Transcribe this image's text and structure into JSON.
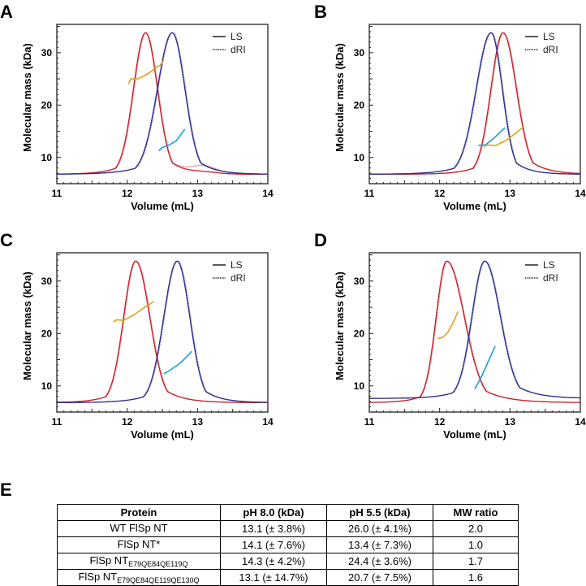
{
  "chart_data": [
    {
      "panel": "A",
      "type": "line",
      "xlabel": "Volume (mL)",
      "ylabel": "Molecular mass (kDa)",
      "xlim": [
        11,
        14
      ],
      "ylim": [
        5,
        35.4
      ],
      "xticks": [
        "11",
        "12",
        "13",
        "14"
      ],
      "yticks": [
        "10",
        "20",
        "30"
      ],
      "legend": {
        "position": "top-right",
        "entries": [
          "LS",
          "dRI"
        ]
      },
      "series": [
        {
          "color": "#c8202a",
          "kind": "chromatogram",
          "peak_volume": 12.26,
          "peak_height": 33.8,
          "baseline": 6.8,
          "width_left": 0.17,
          "width_right": 0.17,
          "shoulder": {
            "volume": 13.1,
            "height": 1.4
          }
        },
        {
          "color": "#2e2e8c",
          "kind": "chromatogram",
          "peak_volume": 12.64,
          "peak_height": 33.8,
          "baseline": 6.8,
          "width_left": 0.21,
          "width_right": 0.18
        },
        {
          "color": "#e3a21a",
          "kind": "mass",
          "points": [
            [
              12.02,
              24.0
            ],
            [
              12.05,
              25.0
            ],
            [
              12.15,
              25.0
            ],
            [
              12.3,
              26.0
            ],
            [
              12.42,
              27.3
            ],
            [
              12.47,
              27.6
            ],
            [
              12.52,
              28.6
            ]
          ]
        },
        {
          "color": "#1b9ee0",
          "kind": "mass",
          "points": [
            [
              12.45,
              11.3
            ],
            [
              12.5,
              11.9
            ],
            [
              12.6,
              12.4
            ],
            [
              12.7,
              13.2
            ],
            [
              12.82,
              15.4
            ]
          ]
        }
      ]
    },
    {
      "panel": "B",
      "type": "line",
      "xlabel": "Volume (mL)",
      "ylabel": "Molecular mass (kDa)",
      "xlim": [
        11,
        14
      ],
      "ylim": [
        5,
        35.4
      ],
      "xticks": [
        "11",
        "12",
        "13",
        "14"
      ],
      "yticks": [
        "10",
        "20",
        "30"
      ],
      "legend": {
        "position": "top-right",
        "entries": [
          "LS",
          "dRI"
        ]
      },
      "series": [
        {
          "color": "#c8202a",
          "kind": "chromatogram",
          "peak_volume": 12.9,
          "peak_height": 33.8,
          "baseline": 6.8,
          "width_left": 0.17,
          "width_right": 0.19
        },
        {
          "color": "#2e2e8c",
          "kind": "chromatogram",
          "peak_volume": 12.73,
          "peak_height": 33.8,
          "baseline": 6.8,
          "width_left": 0.21,
          "width_right": 0.16
        },
        {
          "color": "#e3a21a",
          "kind": "mass",
          "points": [
            [
              12.63,
              11.9
            ],
            [
              12.65,
              12.4
            ],
            [
              12.8,
              12.3
            ],
            [
              12.95,
              13.3
            ],
            [
              13.1,
              14.8
            ],
            [
              13.2,
              16.0
            ]
          ]
        },
        {
          "color": "#1b9ee0",
          "kind": "mass",
          "points": [
            [
              12.55,
              12.3
            ],
            [
              12.65,
              12.4
            ],
            [
              12.75,
              13.4
            ],
            [
              12.85,
              14.7
            ],
            [
              12.93,
              15.7
            ]
          ]
        }
      ]
    },
    {
      "panel": "C",
      "type": "line",
      "xlabel": "Volume (mL)",
      "ylabel": "Molecular mass (kDa)",
      "xlim": [
        11,
        14
      ],
      "ylim": [
        5,
        35.4
      ],
      "xticks": [
        "11",
        "12",
        "13",
        "14"
      ],
      "yticks": [
        "10",
        "20",
        "30"
      ],
      "legend": {
        "position": "top-right",
        "entries": [
          "LS",
          "dRI"
        ]
      },
      "series": [
        {
          "color": "#c8202a",
          "kind": "chromatogram",
          "peak_volume": 12.12,
          "peak_height": 33.8,
          "baseline": 6.8,
          "width_left": 0.17,
          "width_right": 0.2
        },
        {
          "color": "#2e2e8c",
          "kind": "chromatogram",
          "peak_volume": 12.71,
          "peak_height": 33.8,
          "baseline": 6.8,
          "width_left": 0.19,
          "width_right": 0.18
        },
        {
          "color": "#e3a21a",
          "kind": "mass",
          "points": [
            [
              11.8,
              22.2
            ],
            [
              11.85,
              22.6
            ],
            [
              11.95,
              22.5
            ],
            [
              12.1,
              23.6
            ],
            [
              12.25,
              25.0
            ],
            [
              12.38,
              26.1
            ]
          ]
        },
        {
          "color": "#1b9ee0",
          "kind": "mass",
          "points": [
            [
              12.52,
              12.3
            ],
            [
              12.6,
              12.9
            ],
            [
              12.75,
              14.3
            ],
            [
              12.85,
              15.6
            ],
            [
              12.92,
              16.6
            ]
          ]
        }
      ]
    },
    {
      "panel": "D",
      "type": "line",
      "xlabel": "Volume (mL)",
      "ylabel": "Molecular mass (kDa)",
      "xlim": [
        11,
        14
      ],
      "ylim": [
        5,
        35.4
      ],
      "xticks": [
        "11",
        "12",
        "13",
        "14"
      ],
      "yticks": [
        "10",
        "20",
        "30"
      ],
      "legend": {
        "position": "top-right",
        "entries": [
          "LS",
          "dRI"
        ]
      },
      "series": [
        {
          "color": "#c8202a",
          "kind": "chromatogram",
          "peak_volume": 12.1,
          "peak_height": 33.8,
          "baseline": 6.8,
          "width_left": 0.15,
          "width_right": 0.25
        },
        {
          "color": "#2e2e8c",
          "kind": "chromatogram",
          "peak_volume": 12.64,
          "peak_height": 33.8,
          "baseline": 7.6,
          "width_left": 0.18,
          "width_right": 0.22
        },
        {
          "color": "#e3a21a",
          "kind": "mass",
          "points": [
            [
              11.97,
              19.0
            ],
            [
              12.05,
              19.3
            ],
            [
              12.12,
              20.3
            ],
            [
              12.2,
              22.3
            ],
            [
              12.26,
              24.2
            ]
          ]
        },
        {
          "color": "#1b9ee0",
          "kind": "mass",
          "points": [
            [
              12.5,
              9.4
            ],
            [
              12.6,
              11.9
            ],
            [
              12.7,
              14.9
            ],
            [
              12.79,
              17.6
            ]
          ]
        }
      ]
    }
  ],
  "table": {
    "label": "E",
    "headers": [
      "Protein",
      "pH 8.0 (kDa)",
      "pH 5.5 (kDa)",
      "MW ratio"
    ],
    "rows": [
      {
        "protein": "WT FlSp NT",
        "sub": "",
        "ph8": "13.1 (± 3.8%)",
        "ph55": "26.0 (± 4.1%)",
        "ratio": "2.0"
      },
      {
        "protein": "FlSp NT*",
        "sub": "",
        "ph8": "14.1 (± 7.6%)",
        "ph55": "13.4 (± 7.3%)",
        "ratio": "1.0"
      },
      {
        "protein": "FlSp NT",
        "sub": "E79QE84QE119Q",
        "ph8": "14.3 (± 4.2%)",
        "ph55": "24.4 (± 3.6%)",
        "ratio": "1.7"
      },
      {
        "protein": "FlSp NT",
        "sub": "E79QE84QE119QE130Q",
        "ph8": "13.1 (± 14.7%)",
        "ph55": "20.7 (± 7.5%)",
        "ratio": "1.6"
      }
    ]
  }
}
